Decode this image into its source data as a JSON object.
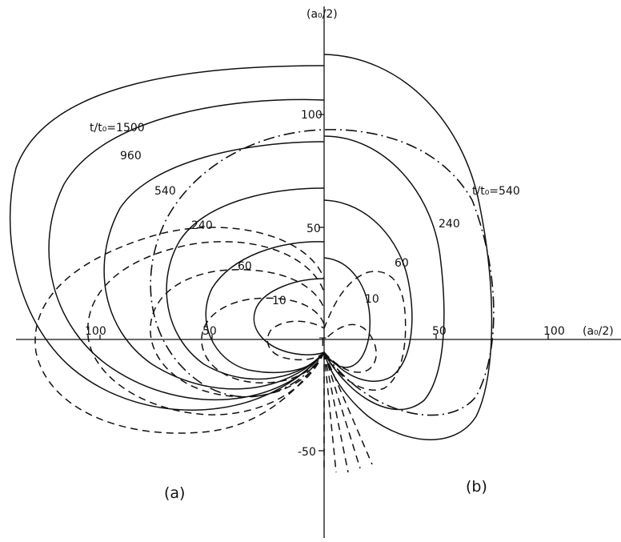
{
  "figure": {
    "y_axis_label": "(a₀/2)",
    "x_axis_label": "(a₀/2)",
    "y_ticks": {
      "t100": "100",
      "t50": "50",
      "tm50": "-50"
    },
    "x_ticks": {
      "t50_right": "50",
      "t100_right": "100",
      "t50_left": "50",
      "t100_left": "100"
    },
    "panels": {
      "a": "(a)",
      "b": "(b)"
    },
    "left_curve_labels": {
      "c1500": "t/t₀=1500",
      "c960": "960",
      "c540": "540",
      "c240": "240",
      "c60": "60",
      "c10": "10"
    },
    "right_curve_labels": {
      "c540": "t/t₀=540",
      "c240": "240",
      "c60": "60",
      "c10": "10"
    },
    "origin_mark": "T"
  }
}
